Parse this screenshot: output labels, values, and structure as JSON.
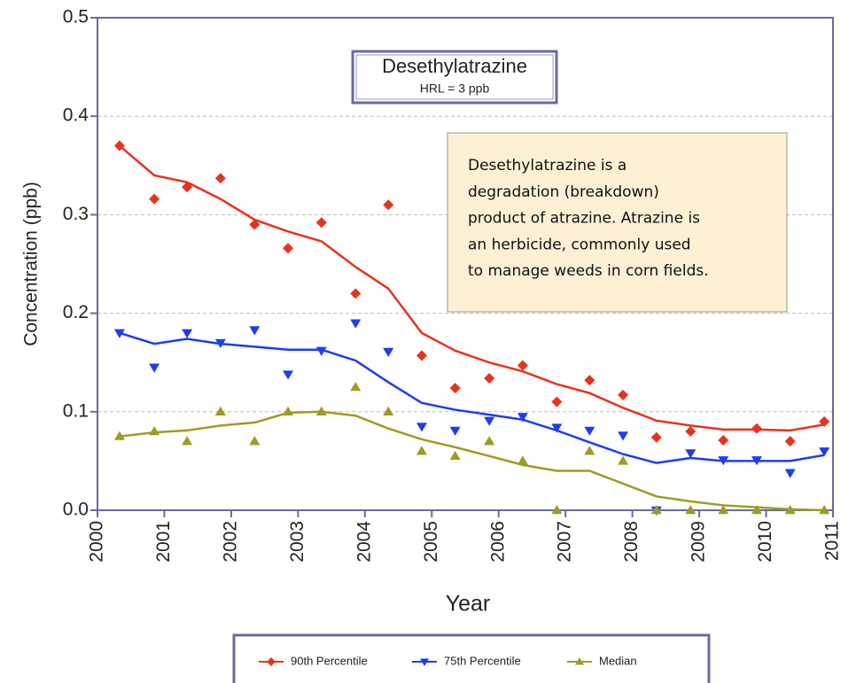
{
  "chart_data": {
    "type": "scatter",
    "title": "Desethylatrazine",
    "subtitle": "HRL = 3 ppb",
    "annotation": [
      "Desethylatrazine is a",
      "degradation (breakdown)",
      "product of atrazine. Atrazine is",
      "an herbicide, commonly used",
      "to manage weeds in corn fields."
    ],
    "x_label": "Year",
    "y_label": "Concentration (ppb)",
    "xlim": [
      2000,
      2011
    ],
    "xticks": [
      2000,
      2001,
      2002,
      2003,
      2004,
      2005,
      2006,
      2007,
      2008,
      2009,
      2010,
      2011
    ],
    "ylim": [
      0,
      0.5
    ],
    "yticks": [
      {
        "value": 0,
        "label": "0.0"
      },
      0.1,
      0.2,
      0.3,
      0.4,
      0.5
    ],
    "grid": true,
    "x": [
      2000.33,
      2000.85,
      2001.34,
      2001.84,
      2002.35,
      2002.85,
      2003.35,
      2003.86,
      2004.35,
      2004.85,
      2005.35,
      2005.86,
      2006.36,
      2006.87,
      2007.36,
      2007.86,
      2008.36,
      2008.87,
      2009.36,
      2009.86,
      2010.36,
      2010.87
    ],
    "series": [
      {
        "name": "90th Percentile",
        "color": "#e8321e",
        "marker": "diamond",
        "values": [
          0.37,
          0.316,
          0.328,
          0.337,
          0.29,
          0.266,
          0.292,
          0.22,
          0.31,
          0.157,
          0.124,
          0.134,
          0.147,
          0.11,
          0.132,
          0.117,
          0.074,
          0.08,
          0.071,
          0.083,
          0.07,
          0.09
        ],
        "trend": [
          0.37,
          0.34,
          0.333,
          0.316,
          0.295,
          0.283,
          0.273,
          0.247,
          0.225,
          0.18,
          0.162,
          0.15,
          0.141,
          0.128,
          0.119,
          0.104,
          0.091,
          0.086,
          0.082,
          0.082,
          0.081,
          0.087
        ]
      },
      {
        "name": "75th Percentile",
        "color": "#1e3cf0",
        "marker": "triangle-down",
        "values": [
          0.18,
          0.145,
          0.18,
          0.17,
          0.183,
          0.138,
          0.162,
          0.19,
          0.161,
          0.085,
          0.081,
          0.091,
          0.095,
          0.084,
          0.081,
          0.076,
          0.0,
          0.058,
          0.051,
          0.051,
          0.038,
          0.06
        ],
        "trend": [
          0.18,
          0.169,
          0.174,
          0.169,
          0.166,
          0.163,
          0.163,
          0.152,
          0.13,
          0.109,
          0.102,
          0.097,
          0.092,
          0.081,
          0.069,
          0.057,
          0.048,
          0.053,
          0.05,
          0.05,
          0.05,
          0.056
        ]
      },
      {
        "name": "Median",
        "color": "#9c9c22",
        "marker": "triangle-up",
        "values": [
          0.075,
          0.08,
          0.07,
          0.1,
          0.07,
          0.1,
          0.1,
          0.125,
          0.1,
          0.06,
          0.055,
          0.07,
          0.05,
          0.0,
          0.06,
          0.05,
          0.0,
          0.0,
          0.0,
          0.0,
          0.0,
          0.0
        ],
        "trend": [
          0.075,
          0.079,
          0.081,
          0.086,
          0.089,
          0.099,
          0.1,
          0.096,
          0.083,
          0.072,
          0.064,
          0.055,
          0.046,
          0.04,
          0.04,
          0.027,
          0.014,
          0.009,
          0.005,
          0.003,
          0.001,
          0.0
        ]
      }
    ]
  }
}
